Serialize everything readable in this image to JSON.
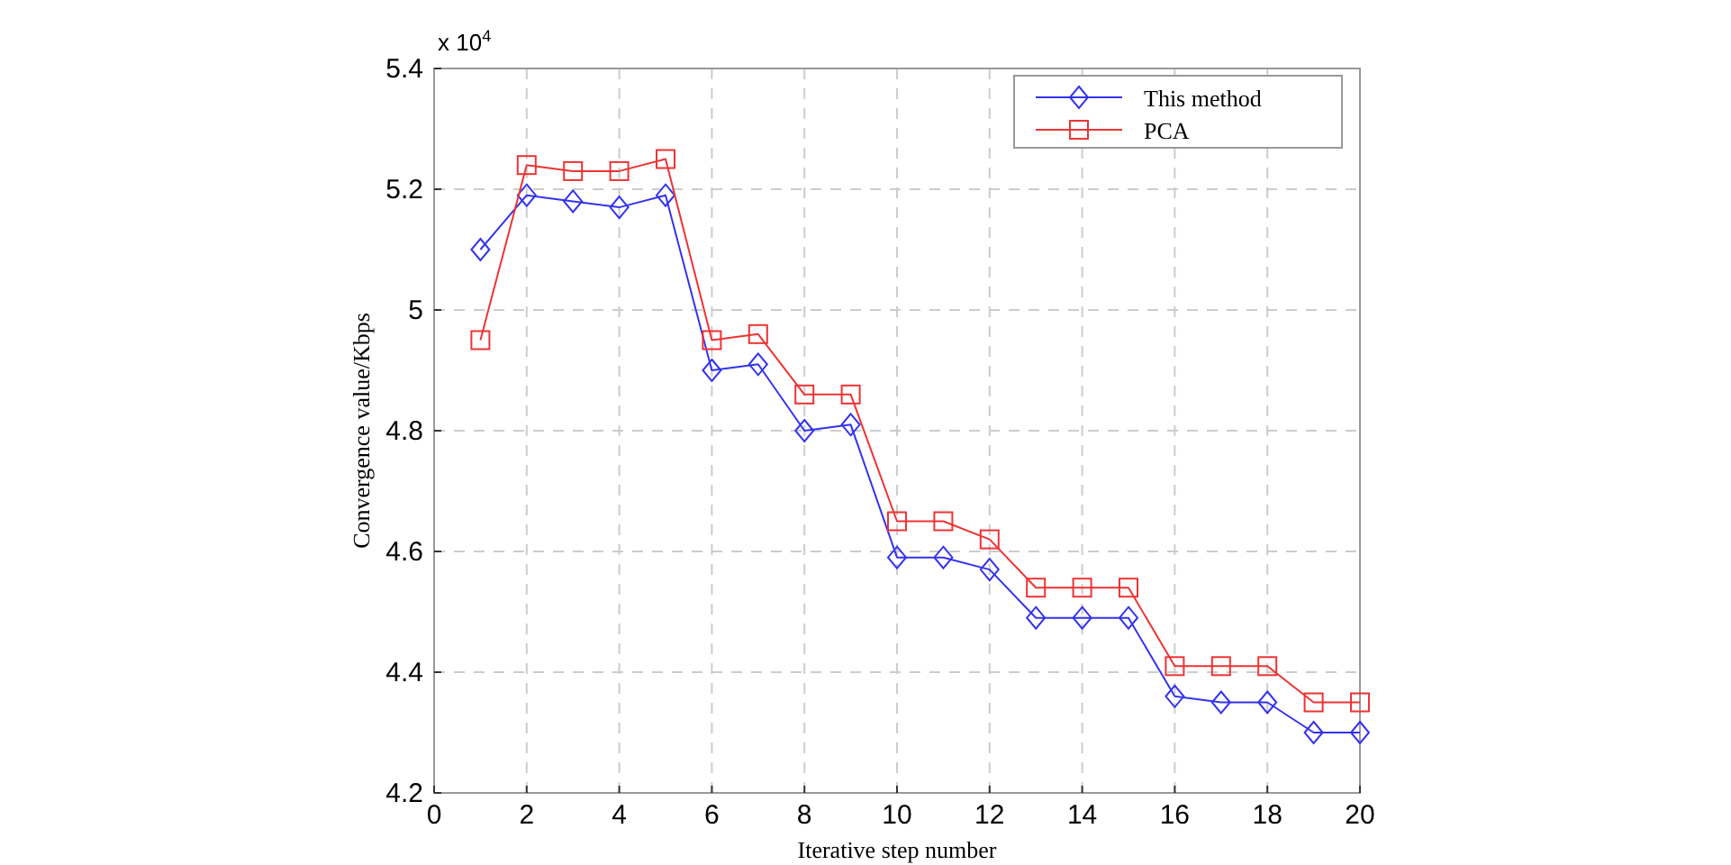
{
  "chart_data": {
    "type": "line",
    "xlabel": "Iterative step number",
    "ylabel": "Convergence value/Kbps",
    "annotations": [
      "x 10$^{4}$"
    ],
    "x": [
      1,
      2,
      3,
      4,
      5,
      6,
      7,
      8,
      9,
      10,
      11,
      12,
      13,
      14,
      15,
      16,
      17,
      18,
      19,
      20
    ],
    "series": [
      {
        "name": "This method",
        "color": "#3333ee",
        "marker": "diamond",
        "values": [
          5.1,
          5.19,
          5.18,
          5.17,
          5.19,
          4.9,
          4.91,
          4.8,
          4.81,
          4.59,
          4.59,
          4.57,
          4.49,
          4.49,
          4.49,
          4.36,
          4.35,
          4.35,
          4.3,
          4.3
        ]
      },
      {
        "name": "PCA",
        "color": "#ee3333",
        "marker": "square",
        "values": [
          4.95,
          5.24,
          5.23,
          5.23,
          5.25,
          4.95,
          4.96,
          4.86,
          4.86,
          4.65,
          4.65,
          4.62,
          4.54,
          4.54,
          4.54,
          4.41,
          4.41,
          4.41,
          4.35,
          4.35
        ]
      }
    ],
    "xlim": [
      0,
      20
    ],
    "xticks": [
      0,
      2,
      4,
      6,
      8,
      10,
      12,
      14,
      16,
      18,
      20
    ],
    "ylim": [
      4.2,
      5.4
    ],
    "yticks": [
      4.2,
      4.4,
      4.6,
      4.8,
      5,
      5.2,
      5.4
    ],
    "grid": true,
    "legend": "top right"
  }
}
